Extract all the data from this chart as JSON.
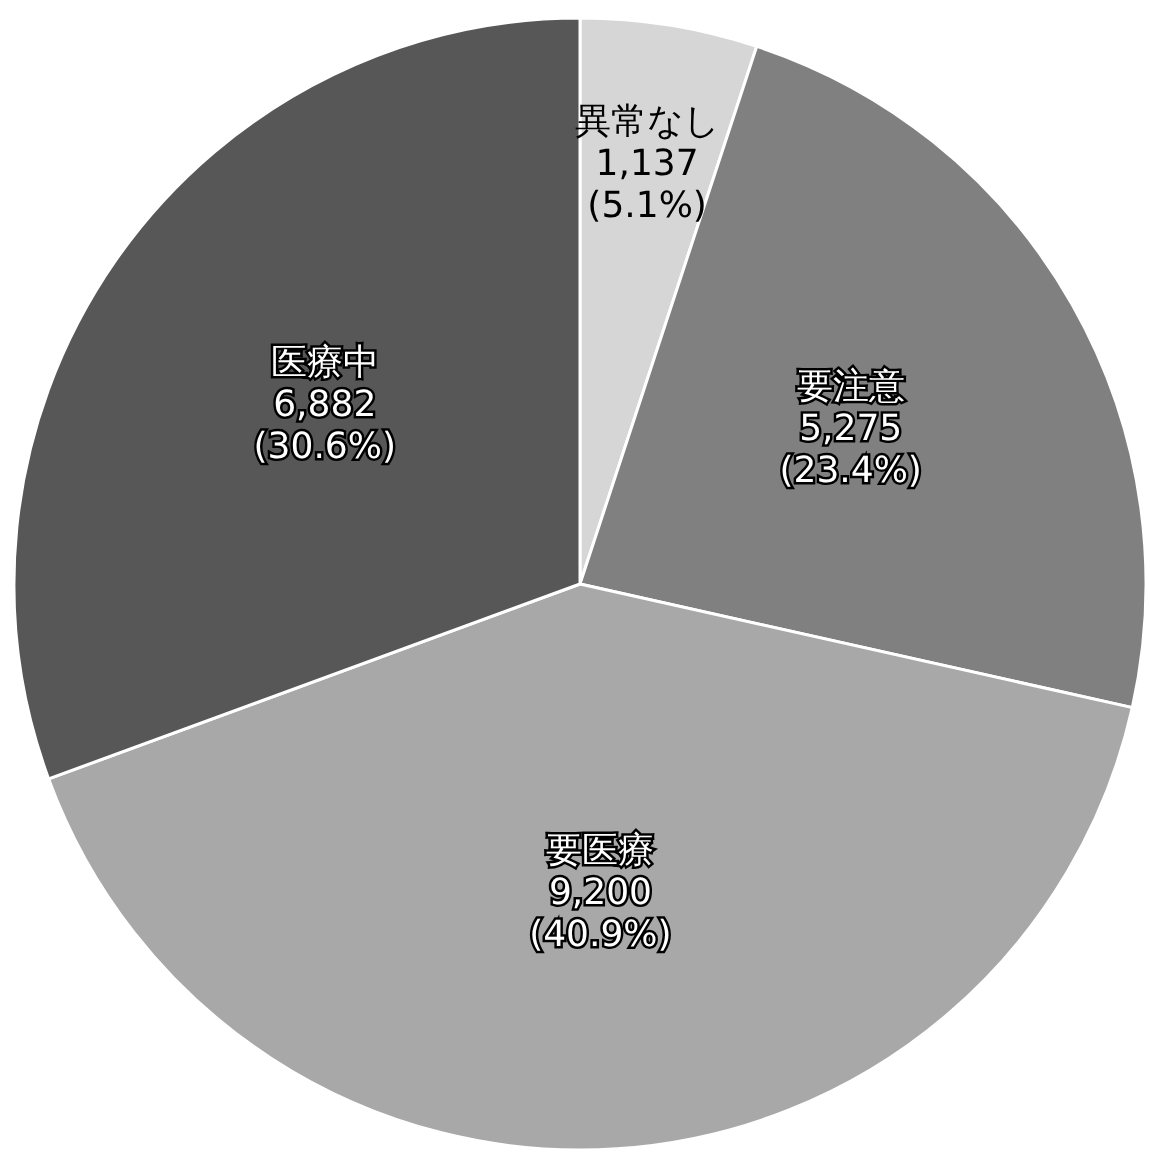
{
  "chart_data": {
    "type": "pie",
    "categories": [
      "異常なし",
      "要注意",
      "要医療",
      "医療中"
    ],
    "values": [
      1137,
      5275,
      9200,
      6882
    ],
    "value_labels": [
      "1,137 (5.1%)",
      "5,275 (23.4%)",
      "9,200 (40.9%)",
      "6,882 (30.6%)"
    ],
    "colors": [
      "#d6d6d6",
      "#808080",
      "#a8a8a8",
      "#575757"
    ]
  }
}
